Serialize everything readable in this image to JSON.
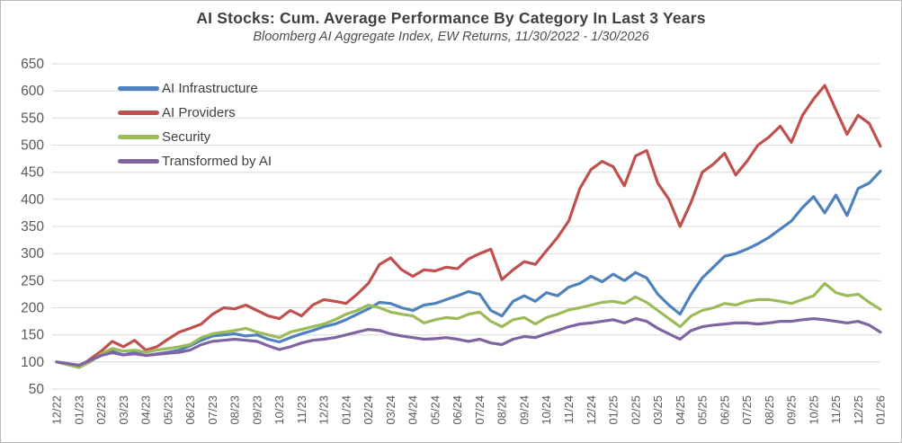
{
  "chart_data": {
    "type": "line",
    "title": "AI Stocks: Cum. Average Performance By Category In Last 3 Years",
    "subtitle": "Bloomberg AI Aggregate Index, EW Returns, 11/30/2022 - 1/30/2026",
    "grid": "horizontal",
    "legend_position": "inside-top-left",
    "ylim": [
      50,
      650
    ],
    "y_ticks": [
      50,
      100,
      150,
      200,
      250,
      300,
      350,
      400,
      450,
      500,
      550,
      600,
      650
    ],
    "x_tick_labels": [
      "12/22",
      "01/23",
      "02/23",
      "03/23",
      "04/23",
      "05/23",
      "06/23",
      "07/23",
      "08/23",
      "09/23",
      "10/23",
      "11/23",
      "12/23",
      "01/24",
      "02/24",
      "03/24",
      "04/24",
      "05/24",
      "06/24",
      "07/24",
      "08/24",
      "09/24",
      "10/24",
      "11/24",
      "12/24",
      "01/25",
      "02/25",
      "03/25",
      "04/25",
      "05/25",
      "06/25",
      "07/25",
      "08/25",
      "09/25",
      "10/25",
      "11/25",
      "12/25",
      "01/26"
    ],
    "points_per_month": 2,
    "sampling_note": "values estimated from chart at half-month resolution, 12/22 through 01/26, index base 100",
    "colors": {
      "gridline": "#d9d9d9",
      "tick_label": "#595959",
      "title_text": "#404040"
    },
    "series": [
      {
        "name": "AI Infrastructure",
        "color": "#4F81BD",
        "values": [
          100,
          97,
          93,
          102,
          112,
          120,
          113,
          118,
          112,
          115,
          118,
          122,
          130,
          140,
          148,
          150,
          152,
          148,
          150,
          142,
          137,
          145,
          152,
          158,
          165,
          170,
          178,
          188,
          198,
          210,
          208,
          200,
          195,
          205,
          208,
          215,
          222,
          230,
          225,
          195,
          185,
          212,
          222,
          212,
          228,
          222,
          238,
          245,
          258,
          248,
          262,
          250,
          265,
          255,
          225,
          205,
          188,
          225,
          255,
          275,
          295,
          300,
          308,
          318,
          330,
          345,
          360,
          385,
          405,
          375,
          408,
          370,
          420,
          430,
          452
        ]
      },
      {
        "name": "AI Providers",
        "color": "#C0504D",
        "values": [
          100,
          96,
          90,
          105,
          120,
          138,
          128,
          140,
          122,
          128,
          142,
          155,
          162,
          170,
          188,
          200,
          198,
          205,
          195,
          185,
          180,
          195,
          185,
          205,
          215,
          212,
          208,
          225,
          245,
          280,
          292,
          270,
          258,
          270,
          268,
          275,
          272,
          290,
          300,
          308,
          252,
          270,
          285,
          280,
          305,
          330,
          360,
          420,
          455,
          470,
          460,
          425,
          480,
          490,
          430,
          400,
          350,
          395,
          450,
          465,
          485,
          445,
          470,
          500,
          515,
          535,
          505,
          555,
          585,
          610,
          565,
          520,
          555,
          540,
          498
        ]
      },
      {
        "name": "Security",
        "color": "#9BBB59",
        "values": [
          100,
          95,
          90,
          100,
          115,
          125,
          120,
          122,
          118,
          122,
          125,
          128,
          132,
          145,
          152,
          155,
          158,
          162,
          155,
          150,
          145,
          155,
          160,
          165,
          170,
          178,
          188,
          195,
          205,
          200,
          192,
          188,
          185,
          172,
          178,
          182,
          180,
          188,
          192,
          175,
          165,
          178,
          182,
          170,
          182,
          188,
          196,
          200,
          205,
          210,
          212,
          208,
          220,
          210,
          195,
          180,
          165,
          185,
          195,
          200,
          208,
          205,
          212,
          215,
          215,
          212,
          208,
          215,
          222,
          245,
          228,
          222,
          225,
          210,
          197
        ]
      },
      {
        "name": "Transformed by AI",
        "color": "#8064A2",
        "values": [
          100,
          97,
          94,
          103,
          112,
          117,
          113,
          115,
          112,
          114,
          116,
          118,
          122,
          132,
          138,
          140,
          142,
          140,
          138,
          130,
          123,
          128,
          135,
          140,
          142,
          145,
          150,
          155,
          160,
          158,
          152,
          148,
          145,
          142,
          143,
          145,
          142,
          138,
          142,
          135,
          132,
          142,
          147,
          145,
          152,
          158,
          165,
          170,
          172,
          175,
          178,
          172,
          180,
          175,
          162,
          152,
          142,
          158,
          165,
          168,
          170,
          172,
          172,
          170,
          172,
          175,
          175,
          178,
          180,
          178,
          175,
          172,
          175,
          168,
          155
        ]
      }
    ]
  }
}
